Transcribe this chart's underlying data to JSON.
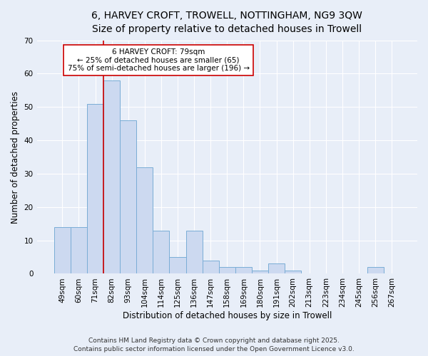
{
  "title_line1": "6, HARVEY CROFT, TROWELL, NOTTINGHAM, NG9 3QW",
  "title_line2": "Size of property relative to detached houses in Trowell",
  "xlabel": "Distribution of detached houses by size in Trowell",
  "ylabel": "Number of detached properties",
  "bar_labels": [
    "49sqm",
    "60sqm",
    "71sqm",
    "82sqm",
    "93sqm",
    "104sqm",
    "114sqm",
    "125sqm",
    "136sqm",
    "147sqm",
    "158sqm",
    "169sqm",
    "180sqm",
    "191sqm",
    "202sqm",
    "213sqm",
    "223sqm",
    "234sqm",
    "245sqm",
    "256sqm",
    "267sqm"
  ],
  "bar_heights": [
    14,
    14,
    51,
    58,
    46,
    32,
    13,
    5,
    13,
    4,
    2,
    2,
    1,
    3,
    1,
    0,
    0,
    0,
    0,
    2,
    0
  ],
  "bar_color": "#ccd9f0",
  "bar_edge_color": "#7aadd6",
  "red_line_bin_index": 3,
  "red_line_color": "#cc0000",
  "annotation_text": "6 HARVEY CROFT: 79sqm\n← 25% of detached houses are smaller (65)\n75% of semi-detached houses are larger (196) →",
  "annotation_box_facecolor": "#ffffff",
  "annotation_box_edgecolor": "#cc0000",
  "ylim": [
    0,
    70
  ],
  "yticks": [
    0,
    10,
    20,
    30,
    40,
    50,
    60,
    70
  ],
  "background_color": "#e8eef8",
  "grid_color": "#ffffff",
  "footer_text": "Contains HM Land Registry data © Crown copyright and database right 2025.\nContains public sector information licensed under the Open Government Licence v3.0.",
  "title_fontsize": 10,
  "subtitle_fontsize": 9,
  "axis_label_fontsize": 8.5,
  "tick_fontsize": 7.5,
  "annotation_fontsize": 7.5,
  "footer_fontsize": 6.5
}
